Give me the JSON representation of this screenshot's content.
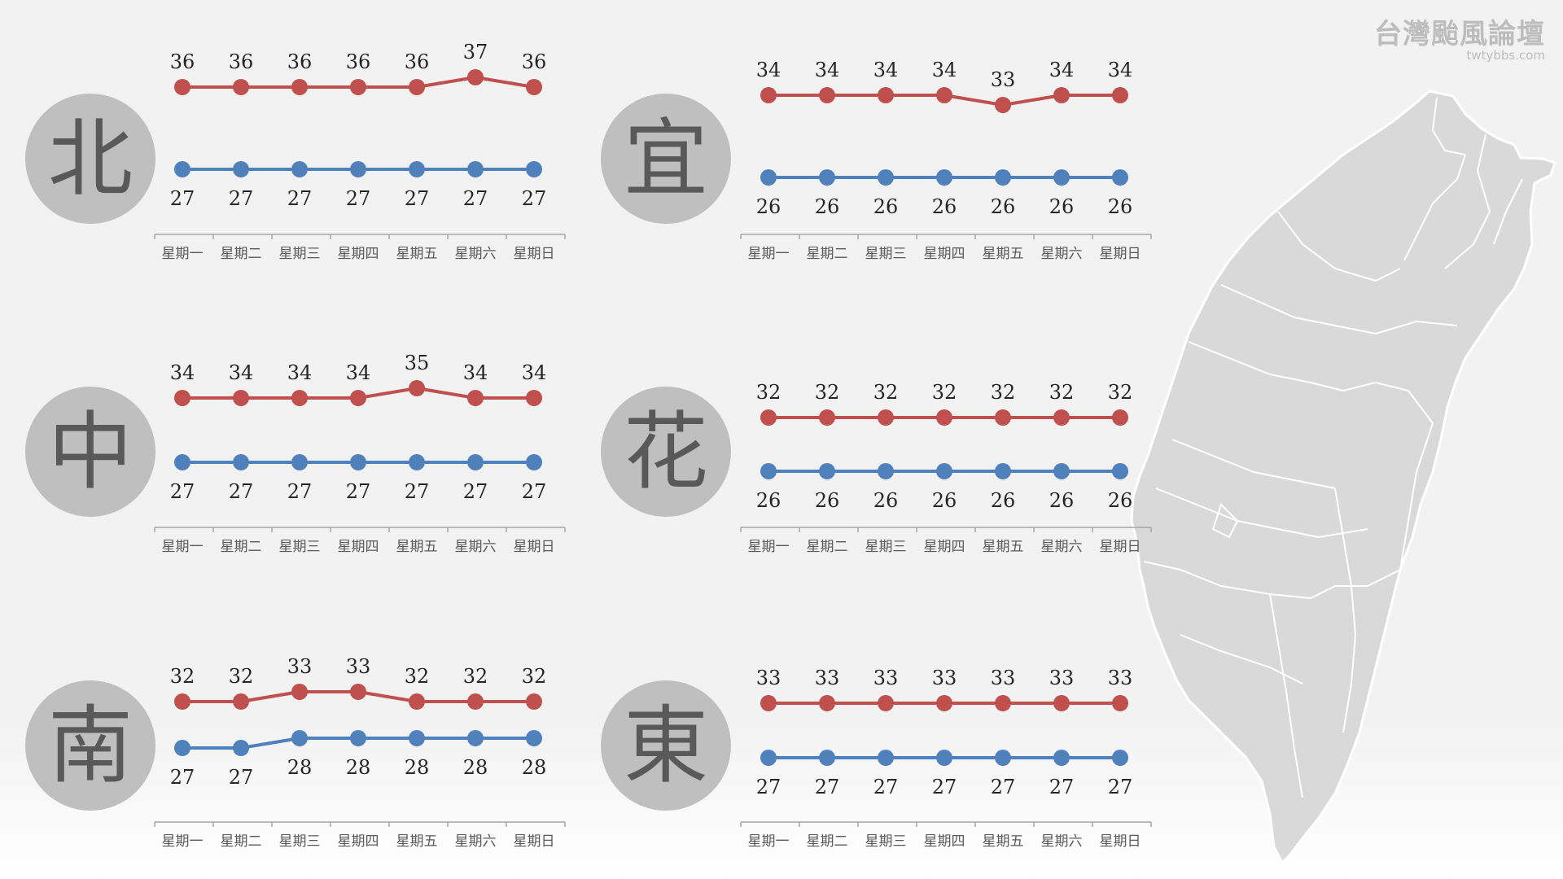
{
  "brand": {
    "title": "台灣颱風論壇",
    "subtitle": "twtybbs.com"
  },
  "colors": {
    "high": "#c0504d",
    "low": "#4f81bd",
    "badge": "#bfbfbf",
    "region_text": "#595959",
    "axis": "#a6a6a6",
    "map_fill": "#d9d9d9",
    "map_border": "#ffffff"
  },
  "map_icon": "taiwan-map",
  "chart_data": [
    {
      "type": "line",
      "region": "北",
      "categories": [
        "星期一",
        "星期二",
        "星期三",
        "星期四",
        "星期五",
        "星期六",
        "星期日"
      ],
      "series": [
        {
          "values": [
            36,
            36,
            36,
            36,
            36,
            37,
            36
          ],
          "color": "#c0504d"
        },
        {
          "values": [
            27,
            27,
            27,
            27,
            27,
            27,
            27
          ],
          "color": "#4f81bd"
        }
      ],
      "ylim": [
        26,
        37
      ]
    },
    {
      "type": "line",
      "region": "宜",
      "categories": [
        "星期一",
        "星期二",
        "星期三",
        "星期四",
        "星期五",
        "星期六",
        "星期日"
      ],
      "series": [
        {
          "values": [
            34,
            34,
            34,
            34,
            33,
            34,
            34
          ],
          "color": "#c0504d"
        },
        {
          "values": [
            26,
            26,
            26,
            26,
            26,
            26,
            26
          ],
          "color": "#4f81bd"
        }
      ],
      "ylim": [
        25,
        34
      ]
    },
    {
      "type": "line",
      "region": "中",
      "categories": [
        "星期一",
        "星期二",
        "星期三",
        "星期四",
        "星期五",
        "星期六",
        "星期日"
      ],
      "series": [
        {
          "values": [
            34,
            34,
            34,
            34,
            35,
            34,
            34
          ],
          "color": "#c0504d"
        },
        {
          "values": [
            27,
            27,
            27,
            27,
            27,
            27,
            27
          ],
          "color": "#4f81bd"
        }
      ],
      "ylim": [
        26,
        35
      ]
    },
    {
      "type": "line",
      "region": "花",
      "categories": [
        "星期一",
        "星期二",
        "星期三",
        "星期四",
        "星期五",
        "星期六",
        "星期日"
      ],
      "series": [
        {
          "values": [
            32,
            32,
            32,
            32,
            32,
            32,
            32
          ],
          "color": "#c0504d"
        },
        {
          "values": [
            26,
            26,
            26,
            26,
            26,
            26,
            26
          ],
          "color": "#4f81bd"
        }
      ],
      "ylim": [
        25,
        32
      ]
    },
    {
      "type": "line",
      "region": "南",
      "categories": [
        "星期一",
        "星期二",
        "星期三",
        "星期四",
        "星期五",
        "星期六",
        "星期日"
      ],
      "series": [
        {
          "values": [
            32,
            32,
            33,
            33,
            32,
            32,
            32
          ],
          "color": "#c0504d"
        },
        {
          "values": [
            27,
            27,
            28,
            28,
            28,
            28,
            28
          ],
          "color": "#4f81bd"
        }
      ],
      "ylim": [
        26,
        33
      ]
    },
    {
      "type": "line",
      "region": "東",
      "categories": [
        "星期一",
        "星期二",
        "星期三",
        "星期四",
        "星期五",
        "星期六",
        "星期日"
      ],
      "series": [
        {
          "values": [
            33,
            33,
            33,
            33,
            33,
            33,
            33
          ],
          "color": "#c0504d"
        },
        {
          "values": [
            27,
            27,
            27,
            27,
            27,
            27,
            27
          ],
          "color": "#4f81bd"
        }
      ],
      "ylim": [
        26,
        33
      ]
    }
  ]
}
